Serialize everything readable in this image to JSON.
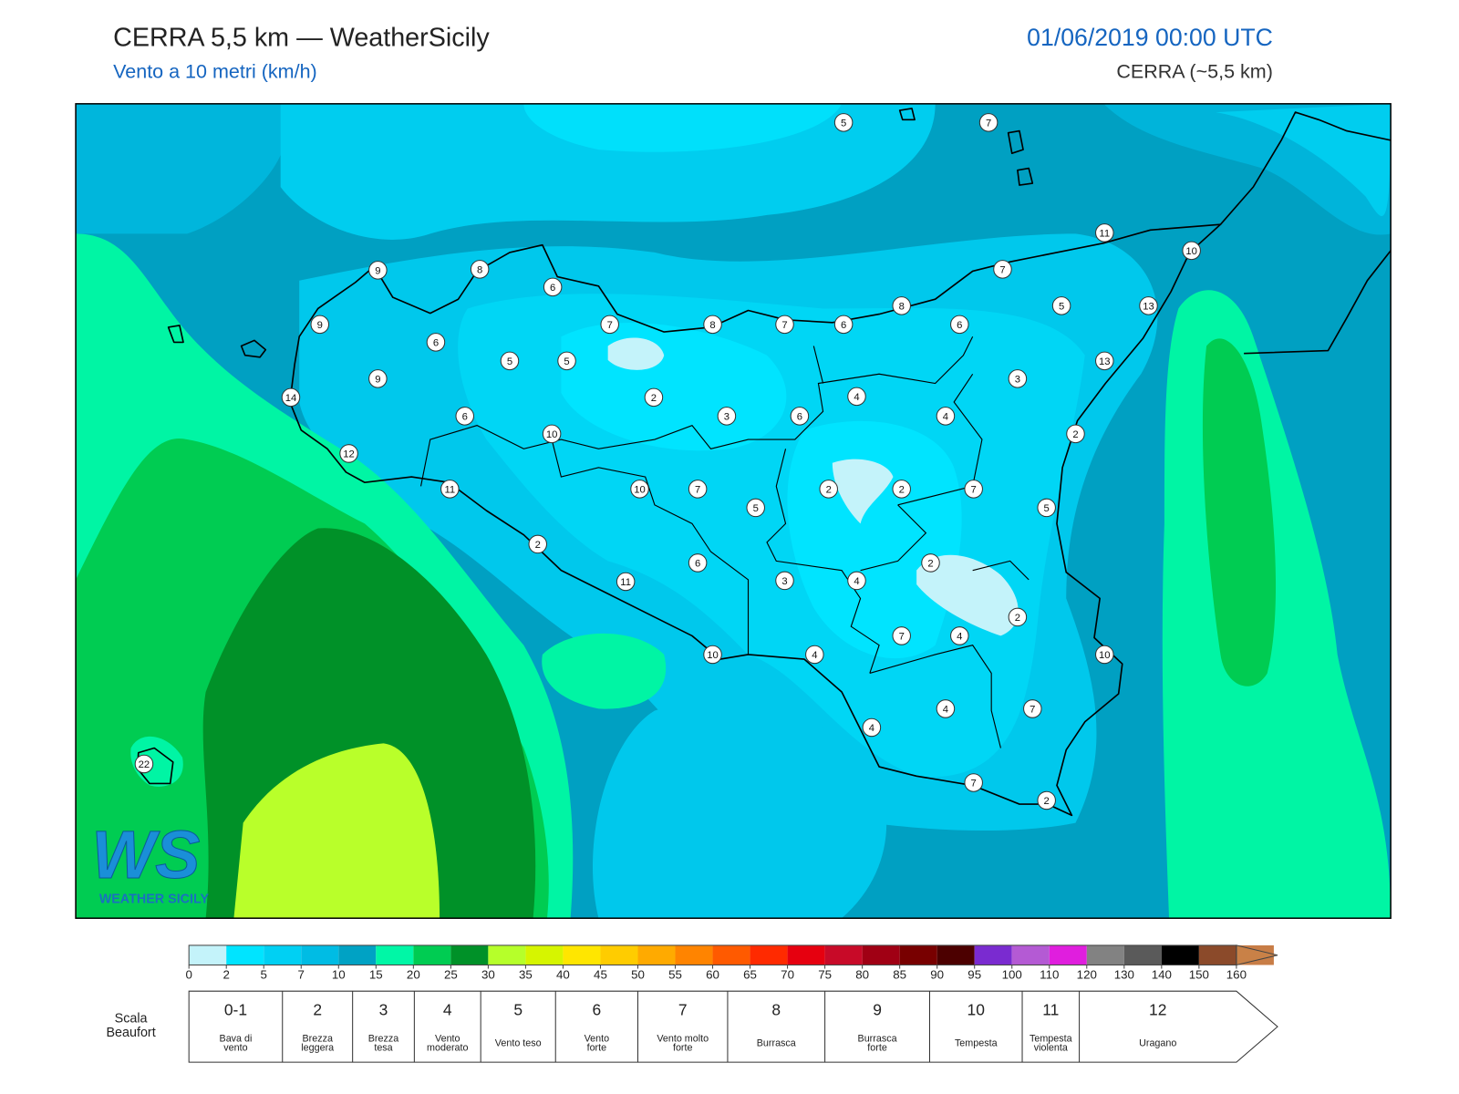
{
  "header": {
    "title": "CERRA 5,5 km — WeatherSicily",
    "subtitle": "Vento a 10 metri (km/h)",
    "datetime": "01/06/2019 00:00 UTC",
    "model": "CERRA (~5,5 km)"
  },
  "map": {
    "stations": [
      5,
      7,
      11,
      10,
      9,
      8,
      6,
      7,
      9,
      7,
      8,
      7,
      6,
      8,
      6,
      5,
      13,
      6,
      5,
      5,
      13,
      9,
      3,
      14,
      2,
      4,
      3,
      6,
      4,
      6,
      10,
      2,
      12,
      11,
      10,
      7,
      2,
      2,
      7,
      5,
      5,
      2,
      6,
      2,
      11,
      3,
      4,
      2,
      7,
      4,
      10,
      4,
      10,
      4,
      7,
      4,
      7,
      2,
      22
    ]
  },
  "logo": {
    "mark": "WS",
    "text": "WEATHER SICILY"
  },
  "colorbar": {
    "ticks": [
      0,
      2,
      5,
      7,
      10,
      15,
      20,
      25,
      30,
      35,
      40,
      45,
      50,
      55,
      60,
      65,
      70,
      75,
      80,
      85,
      90,
      95,
      100,
      110,
      120,
      130,
      140,
      150,
      160
    ],
    "colors": [
      "#c4f3fa",
      "#00e4ff",
      "#00d0f3",
      "#00bce4",
      "#00a2c4",
      "#00f7a6",
      "#00cc52",
      "#009128",
      "#b6ff2a",
      "#d6f500",
      "#ffe600",
      "#ffcc00",
      "#ffaa00",
      "#ff8400",
      "#ff5a00",
      "#ff2a00",
      "#e6000f",
      "#c80a28",
      "#a00014",
      "#780000",
      "#4c0000",
      "#7a2bd0",
      "#b45ad4",
      "#e01ede",
      "#828282",
      "#5a5a5a",
      "#000000",
      "#8b4a2a",
      "#c87d46"
    ],
    "extend_color": "#c98147"
  },
  "beaufort": {
    "label": [
      "Scala",
      "Beaufort"
    ],
    "forces": [
      {
        "force": "0-1",
        "name": [
          "Bava di",
          "vento"
        ]
      },
      {
        "force": 2,
        "name": [
          "Brezza",
          "leggera"
        ]
      },
      {
        "force": 3,
        "name": [
          "Brezza",
          "tesa"
        ]
      },
      {
        "force": 4,
        "name": [
          "Vento",
          "moderato"
        ]
      },
      {
        "force": 5,
        "name": [
          "Vento teso"
        ]
      },
      {
        "force": 6,
        "name": [
          "Vento",
          "forte"
        ]
      },
      {
        "force": 7,
        "name": [
          "Vento molto",
          "forte"
        ]
      },
      {
        "force": 8,
        "name": [
          "Burrasca"
        ]
      },
      {
        "force": 9,
        "name": [
          "Burrasca",
          "forte"
        ]
      },
      {
        "force": 10,
        "name": [
          "Tempesta"
        ]
      },
      {
        "force": 11,
        "name": [
          "Tempesta",
          "violenta"
        ]
      },
      {
        "force": 12,
        "name": [
          "Uragano"
        ]
      }
    ]
  }
}
